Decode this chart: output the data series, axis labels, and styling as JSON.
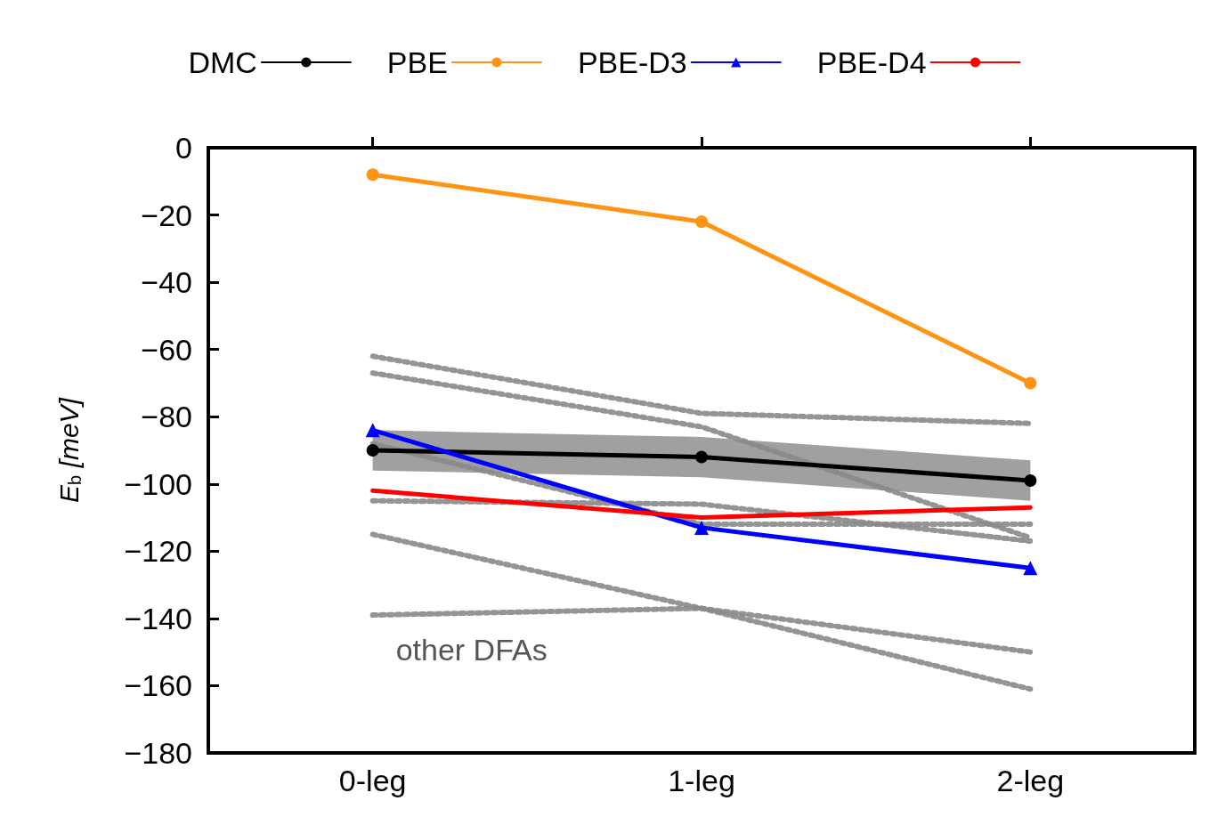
{
  "chart_data": {
    "type": "line",
    "categories": [
      "0-leg",
      "1-leg",
      "2-leg"
    ],
    "ylabel": "E$_{b}$ [meV]",
    "ylim": [
      -180,
      0
    ],
    "yticks": [
      0,
      -20,
      -40,
      -60,
      -80,
      -100,
      -120,
      -140,
      -160,
      -180
    ],
    "legend": "top",
    "annotations": [
      "other DFAs"
    ],
    "series": [
      {
        "color": "#888888",
        "values": [
          -62,
          -79,
          -82
        ],
        "line_style": "dashed",
        "marker": "none"
      },
      {
        "color": "#888888",
        "values": [
          -67,
          -83,
          -116
        ],
        "line_style": "dashed",
        "marker": "none"
      },
      {
        "color": "#888888",
        "values": [
          -88,
          -112,
          -112
        ],
        "line_style": "dashed",
        "marker": "none"
      },
      {
        "color": "#888888",
        "values": [
          -105,
          -106,
          -117
        ],
        "line_style": "dashed",
        "marker": "none"
      },
      {
        "color": "#888888",
        "values": [
          -115,
          -137,
          -150
        ],
        "line_style": "dashed",
        "marker": "none"
      },
      {
        "color": "#888888",
        "values": [
          -139,
          -137,
          -161
        ],
        "line_style": "dashed",
        "marker": "none"
      },
      {
        "name": "DMC",
        "color": "#000000",
        "values": [
          -90,
          -92,
          -99
        ],
        "lower": [
          -96,
          -98,
          -105
        ],
        "upper": [
          -84,
          -86,
          -93
        ],
        "marker": "circle",
        "line_style": "solid"
      },
      {
        "name": "PBE",
        "color": "#ff9414",
        "values": [
          -8,
          -22,
          -70
        ],
        "marker": "circle",
        "line_style": "solid"
      },
      {
        "name": "PBE-D3",
        "color": "#0000ff",
        "values": [
          -84,
          -113,
          -125
        ],
        "marker": "triangle",
        "line_style": "solid"
      },
      {
        "name": "PBE-D4",
        "color": "#ff0000",
        "values": [
          -102,
          -110,
          -107
        ],
        "marker": "none",
        "line_style": "solid"
      }
    ]
  }
}
